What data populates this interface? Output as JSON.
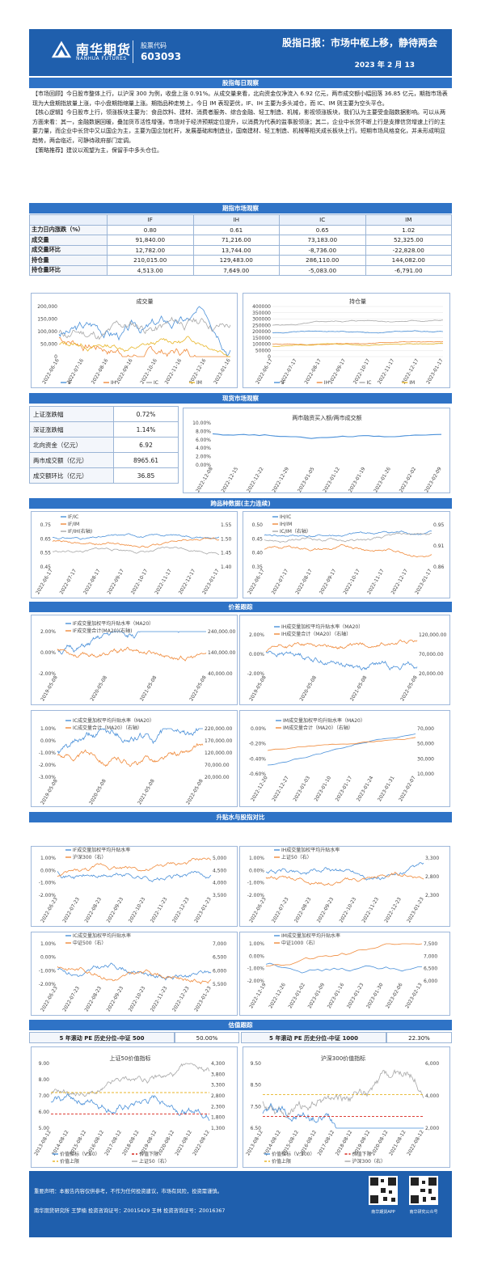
{
  "header": {
    "brand_cn": "南华期货",
    "brand_en": "NANHUA FUTURES",
    "stock_label": "股票代码",
    "stock_code": "603093",
    "title": "股指日报：市场中枢上移，静待两会",
    "date": "2023 年 2 月 13"
  },
  "sections": {
    "daily": "股指每日观察",
    "futures": "期指市场观察",
    "spot": "现货市场观察",
    "variety": "跨品种数据(主力连续)",
    "basis": "价差跟踪",
    "basis_rate": "升贴水与股指对比",
    "valuation": "估值跟踪"
  },
  "daily_text": [
    "【市场回顾】今日股市整体上行，以沪深 300 为例，收盘上涨 0.91%。从成交量来看，北向资金仅净流入 6.92 亿元，两市成交额小幅回落 36.85 亿元，期指市场表现为大盘期指放量上涨，中小盘期指缩量上涨。期指品种走势上，今日 IM 表现更优，IF、IH 主要为多头减仓，而 IC、IM 则主要为空头平仓。",
    "【核心逻辑】今日股市上行，领涨板块主要为：食品饮料、建材、消费者服务、综合金融、轻工制造、机械，影视领涨板块，我们认为主要受金融数据影响。可以从两方面来看：其一，金融数据回暖，叠加货币活性增强，市场对于经济预期定位提升，以消费为代表的监事股领涨；其二，企业中长贷不断上行是支撑信贷增速上行的主要力量，而企业中长贷中又以国企为主，主要为国企加杠杆，发展基础和制造业，国南建材、轻工制造、机械等相关成长板块上行。短期市场风格变化，并未形成明显趋势，两会临近，可静待政府部门定调。",
    "【策略推荐】建议以观望为主，保留手中多头仓位。"
  ],
  "futures_table": {
    "headers": [
      "IF",
      "IH",
      "IC",
      "IM"
    ],
    "rows": [
      {
        "label": "主力日内涨跌（%）",
        "values": [
          "0.80",
          "0.61",
          "0.65",
          "1.02"
        ]
      },
      {
        "label": "成交量",
        "values": [
          "91,840.00",
          "71,216.00",
          "73,183.00",
          "52,325.00"
        ]
      },
      {
        "label": "成交量环比",
        "values": [
          "12,782.00",
          "13,744.00",
          "-8,736.00",
          "-22,828.00"
        ]
      },
      {
        "label": "持仓量",
        "values": [
          "210,015.00",
          "129,483.00",
          "286,110.00",
          "144,082.00"
        ]
      },
      {
        "label": "持仓量环比",
        "values": [
          "4,513.00",
          "7,649.00",
          "-5,083.00",
          "-6,791.00"
        ]
      }
    ]
  },
  "spot_table": [
    {
      "label": "上证涨跌幅",
      "value": "0.72%"
    },
    {
      "label": "深证涨跌幅",
      "value": "1.14%"
    },
    {
      "label": "北向资金（亿元）",
      "value": "6.92"
    },
    {
      "label": "两市成交额（亿元）",
      "value": "8965.61"
    },
    {
      "label": "成交额环比（亿元）",
      "value": "36.85"
    }
  ],
  "pe": {
    "label1": "5 年滚动 PE 历史分位-中证 500",
    "value1": "50.00%",
    "label2": "5 年滚动 PE 历史分位-中证 1000",
    "value2": "22.30%"
  },
  "footer": {
    "line1": "重要声明：本报告内容仅供参考，不作为任何投资建议，市场有风险，投资需谨慎。",
    "line2": "南华期货研究所  王梦楠  投资咨询证号：Z0015429    王林  投资咨询证号：Z0016367",
    "qr1": "南华期货APP",
    "qr2": "南华研究公众号"
  },
  "colors": {
    "blue": "#4a90d9",
    "orange": "#f08a3a",
    "gray": "#a8a8a8",
    "yellow": "#e8b628",
    "red": "#d9261c",
    "brand": "#1f5fad"
  },
  "charts": [
    {
      "id": "vol",
      "title": "成交量",
      "yticks": [
        "200,000",
        "150,000",
        "100,000",
        "50,000",
        "0"
      ],
      "xticks": [
        "2022-06-16",
        "2022-07-16",
        "2022-08-16",
        "2022-09-16",
        "2022-10-16",
        "2022-11-16",
        "2022-12-16",
        "2023-01-16"
      ],
      "legend": [
        "IF",
        "IH",
        "IC",
        "IM"
      ]
    },
    {
      "id": "oi",
      "title": "持仓量",
      "yticks": [
        "400000",
        "350000",
        "300000",
        "250000",
        "200000",
        "150000",
        "100000",
        "50000",
        "0"
      ],
      "xticks": [
        "2022-06-17",
        "2022-07-17",
        "2022-08-17",
        "2022-09-17",
        "2022-10-17",
        "2022-11-17",
        "2022-12-17",
        "2023-01-17"
      ],
      "legend": [
        "IF",
        "IH",
        "IC",
        "IM"
      ]
    },
    {
      "id": "north",
      "title": "两市融资买入额/两市成交额",
      "yticks": [
        "10.00%",
        "8.00%",
        "6.00%",
        "4.00%",
        "2.00%",
        "0.00%"
      ],
      "xticks": [
        "2022-12-08",
        "2022-12-15",
        "2022-12-22",
        "2022-12-29",
        "2023-01-05",
        "2023-01-12",
        "2023-01-19",
        "2023-01-26",
        "2023-02-02",
        "2023-02-09"
      ]
    },
    {
      "id": "cross1",
      "legend": [
        "IF/IC",
        "IF/IM",
        "IF/IH(右轴)"
      ],
      "yticks": [
        "0.75",
        "0.65",
        "0.55",
        "0.45"
      ],
      "yticks_r": [
        "1.55",
        "1.50",
        "1.45",
        "1.40"
      ],
      "xticks": [
        "2022-06-17",
        "2022-07-17",
        "2022-08-17",
        "2022-09-17",
        "2022-10-17",
        "2022-11-17",
        "2022-12-17",
        "2023-01-17"
      ]
    },
    {
      "id": "cross2",
      "legend": [
        "IH/IC",
        "IH/IM",
        "IC/IM（右轴）"
      ],
      "yticks": [
        "0.50",
        "0.45",
        "0.40",
        "0.35"
      ],
      "yticks_r": [
        "0.95",
        "0.91",
        "0.86"
      ],
      "xticks": [
        "2022-06-17",
        "2022-07-17",
        "2022-08-17",
        "2022-09-17",
        "2022-10-17",
        "2022-11-17",
        "2022-12-17",
        "2023-01-17"
      ]
    },
    {
      "id": "bIF",
      "legend": [
        "IF成交量加权平均升贴水率（MA20）",
        "IF成交量合计(MA20)(右轴)"
      ],
      "yticks": [
        "2.00%",
        "0.00%",
        "-2.00%"
      ],
      "yticks_r": [
        "240,000.00",
        "140,000.00",
        "40,000.00"
      ],
      "xticks": [
        "2019-05-08",
        "2020-05-08",
        "2021-05-08",
        "2022-05-08"
      ]
    },
    {
      "id": "bIH",
      "legend": [
        "IH成交量加权平均升贴水率（MA20）",
        "IH成交量合计（MA20）（右轴）"
      ],
      "yticks": [
        "2.00%",
        "0.00%",
        "-2.00%"
      ],
      "yticks_r": [
        "120,000.00",
        "70,000.00",
        "20,000.00"
      ],
      "xticks": [
        "2019-05-08",
        "2020-05-08",
        "2021-05-08",
        "2022-05-08"
      ]
    },
    {
      "id": "bIC",
      "legend": [
        "IC成交量加权平均升贴水率（MA20）",
        "IC成交量合计（MA20）（右轴）"
      ],
      "yticks": [
        "1.00%",
        "0.00%",
        "-1.00%",
        "-2.00%",
        "-3.00%"
      ],
      "yticks_r": [
        "220,000.00",
        "170,000.00",
        "120,000.00",
        "70,000.00",
        "20,000.00"
      ],
      "xticks": [
        "2019-05-08",
        "2020-05-08",
        "2021-05-08",
        "2022-05-08"
      ]
    },
    {
      "id": "bIM",
      "legend": [
        "IM成交量加权平均升贴水率（MA20）",
        "IM成交量合计（MA20）（右轴）"
      ],
      "yticks": [
        "0.00%",
        "-0.20%",
        "-0.40%",
        "-0.60%"
      ],
      "yticks_r": [
        "70,000",
        "50,000",
        "30,000",
        "10,000"
      ],
      "xticks": [
        "2022-12-20",
        "2022-12-27",
        "2023-01-03",
        "2023-01-10",
        "2023-01-17",
        "2023-01-24",
        "2023-01-31",
        "2023-02-07"
      ]
    },
    {
      "id": "sIF",
      "legend": [
        "IF成交量加权平均升贴水率",
        "沪深300（右）"
      ],
      "yticks": [
        "1.00%",
        "0.00%",
        "-1.00%",
        "-2.00%"
      ],
      "yticks_r": [
        "5,000",
        "4,500",
        "4,000",
        "3,500"
      ],
      "xticks": [
        "2022-06-23",
        "2022-07-23",
        "2022-08-23",
        "2022-09-23",
        "2022-10-23",
        "2022-11-23",
        "2022-12-23",
        "2023-01-23"
      ]
    },
    {
      "id": "sIH",
      "legend": [
        "IH成交量加权平均升贴水率",
        "上证50（右）"
      ],
      "yticks": [
        "1.00%",
        "0.00%",
        "-1.00%",
        "-2.00%"
      ],
      "yticks_r": [
        "3,300",
        "2,800",
        "2,300"
      ],
      "xticks": [
        "2022-06-23",
        "2022-07-23",
        "2022-08-23",
        "2022-09-23",
        "2022-10-23",
        "2022-11-23",
        "2022-12-23",
        "2023-01-23"
      ]
    },
    {
      "id": "sIC",
      "legend": [
        "IC成交量加权平均升贴水率",
        "中证500（右）"
      ],
      "yticks": [
        "1.00%",
        "0.00%",
        "-1.00%",
        "-2.00%"
      ],
      "yticks_r": [
        "7,000",
        "6,500",
        "6,000",
        "5,500"
      ],
      "xticks": [
        "2022-06-23",
        "2022-07-23",
        "2022-08-23",
        "2022-09-23",
        "2022-10-23",
        "2022-11-23",
        "2022-12-23",
        "2023-01-23"
      ]
    },
    {
      "id": "sIM",
      "legend": [
        "IM成交量加权平均升贴水率",
        "中证1000（右）"
      ],
      "yticks": [
        "1.00%",
        "0.00%",
        "-1.00%",
        "-2.00%"
      ],
      "yticks_r": [
        "7,500",
        "7,000",
        "6,500",
        "6,000"
      ],
      "xticks": [
        "2022-12-19",
        "2022-12-26",
        "2023-01-02",
        "2023-01-09",
        "2023-01-16",
        "2023-01-23",
        "2023-01-30",
        "2023-02-06",
        "2023-02-13"
      ]
    },
    {
      "id": "val50",
      "title": "上证50价值指标",
      "legend": [
        "价值指标（V,50）",
        "价值下限",
        "价值上限",
        "上证50（右）"
      ],
      "yticks": [
        "9.00",
        "8.00",
        "7.00",
        "6.00",
        "5.00"
      ],
      "yticks_r": [
        "4,300",
        "3,800",
        "3,300",
        "2,800",
        "2,300",
        "1,800",
        "1,300"
      ],
      "xticks": [
        "2013-08-12",
        "2014-08-12",
        "2015-08-12",
        "2016-08-12",
        "2017-08-12",
        "2018-08-12",
        "2019-08-12",
        "2020-08-12",
        "2021-08-12",
        "2022-08-12"
      ]
    },
    {
      "id": "val300",
      "title": "沪深300价值指标",
      "legend": [
        "价值指标（V,300）",
        "价值下限",
        "价值上限",
        "沪深300（右）"
      ],
      "yticks": [
        "9.50",
        "8.50",
        "7.50",
        "6.50"
      ],
      "yticks_r": [
        "6,000",
        "4,000",
        "2,000"
      ],
      "xticks": [
        "2013-08-12",
        "2014-08-12",
        "2015-08-12",
        "2016-08-12",
        "2017-08-12",
        "2018-08-12",
        "2019-08-12",
        "2020-08-12",
        "2021-08-12",
        "2022-08-12"
      ]
    }
  ]
}
